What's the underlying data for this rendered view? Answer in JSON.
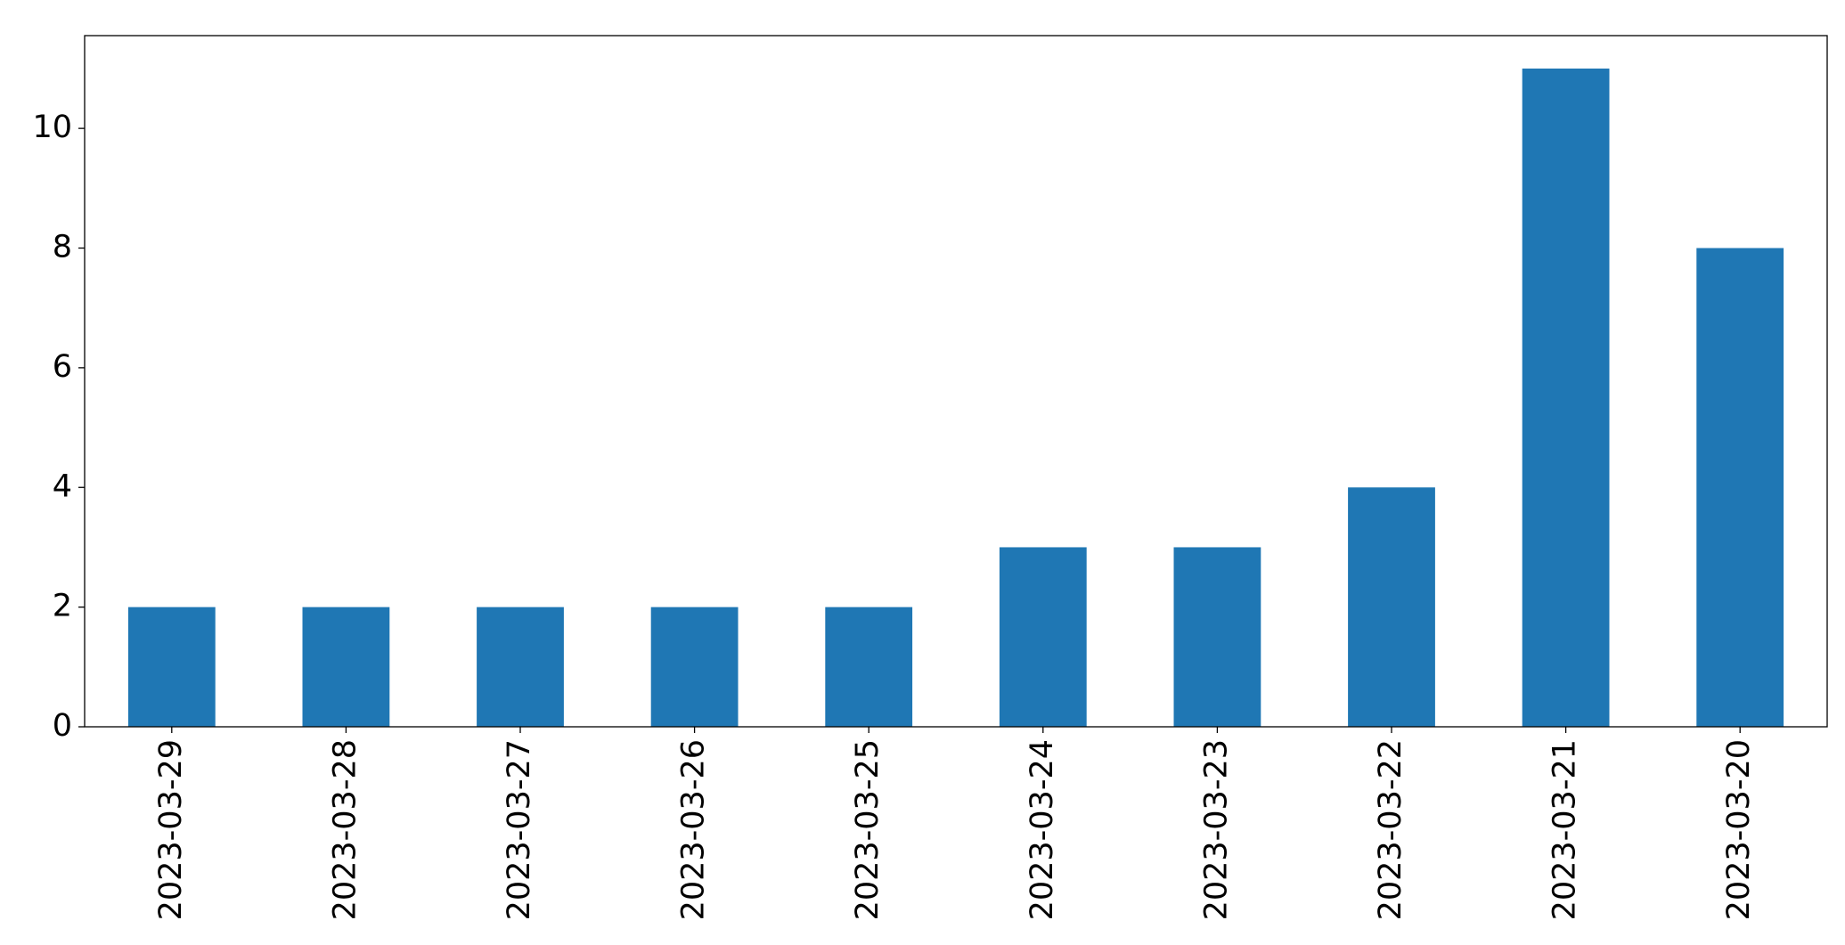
{
  "chart_data": {
    "type": "bar",
    "categories": [
      "2023-03-29",
      "2023-03-28",
      "2023-03-27",
      "2023-03-26",
      "2023-03-25",
      "2023-03-24",
      "2023-03-23",
      "2023-03-22",
      "2023-03-21",
      "2023-03-20"
    ],
    "values": [
      2,
      2,
      2,
      2,
      2,
      3,
      3,
      4,
      11,
      8
    ],
    "color": "#1f77b4",
    "ylim": [
      0,
      11.55
    ],
    "yticks": [
      0,
      2,
      4,
      6,
      8,
      10
    ],
    "grid": false
  }
}
